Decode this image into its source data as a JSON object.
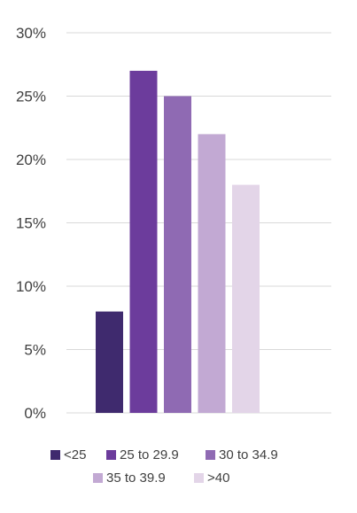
{
  "chart_data": {
    "type": "bar",
    "title": "",
    "xlabel": "",
    "ylabel": "",
    "ylim": [
      0,
      30
    ],
    "yticks": [
      "0%",
      "5%",
      "10%",
      "15%",
      "20%",
      "25%",
      "30%"
    ],
    "grid": true,
    "legend_position": "bottom",
    "series": [
      {
        "name": "<25",
        "value": 8,
        "color": "#3f2a6e"
      },
      {
        "name": "25 to 29.9",
        "value": 27,
        "color": "#6c3c9c"
      },
      {
        "name": "30 to 34.9",
        "value": 25,
        "color": "#8f6ab3"
      },
      {
        "name": "35 to 39.9",
        "value": 22,
        "color": "#c2a9d3"
      },
      {
        "name": ">40",
        "value": 18,
        "color": "#e3d5e8"
      }
    ],
    "gridline_color": "#d9d9d9",
    "text_color": "#404040"
  }
}
